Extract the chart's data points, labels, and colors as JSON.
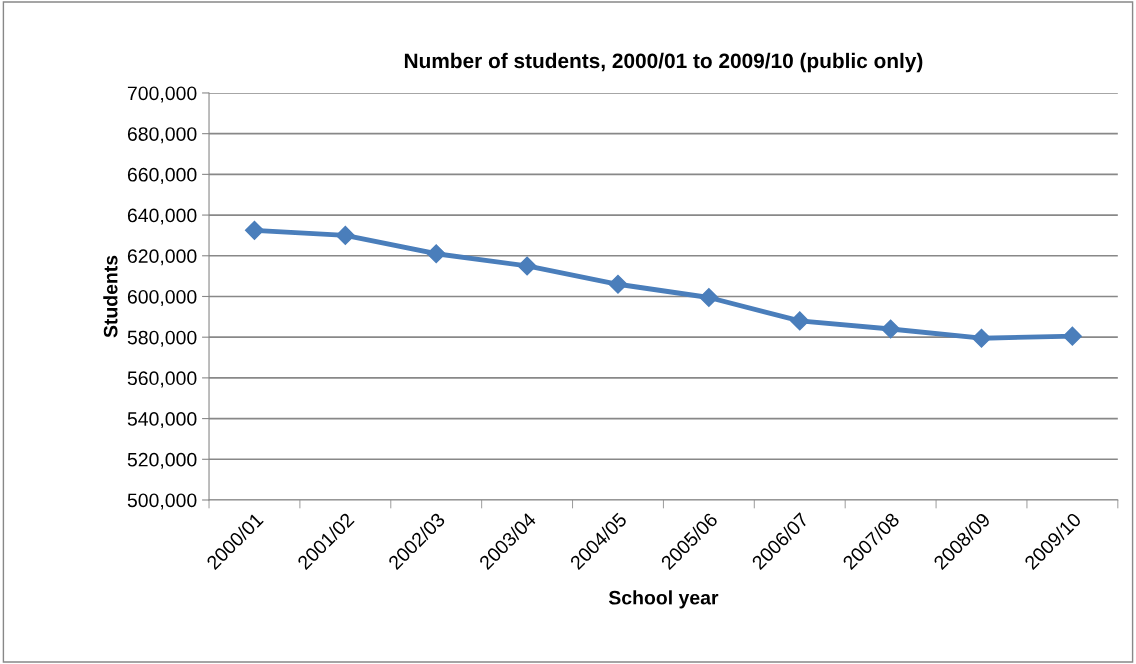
{
  "chart_data": {
    "type": "line",
    "title": "Number of students, 2000/01 to 2009/10 (public only)",
    "xlabel": "School year",
    "ylabel": "Students",
    "categories": [
      "2000/01",
      "2001/02",
      "2002/03",
      "2003/04",
      "2004/05",
      "2005/06",
      "2006/07",
      "2007/08",
      "2008/09",
      "2009/10"
    ],
    "series": [
      {
        "color": "#4a7ebb",
        "values": [
          632500,
          630000,
          621000,
          615000,
          606000,
          599500,
          588000,
          584000,
          579500,
          580500
        ]
      }
    ],
    "ylim": [
      500000,
      700000
    ],
    "yticks": [
      {
        "value": 500000,
        "label": "500,000"
      },
      {
        "value": 520000,
        "label": "520,000"
      },
      {
        "value": 540000,
        "label": "540,000"
      },
      {
        "value": 560000,
        "label": "560,000"
      },
      {
        "value": 580000,
        "label": "580,000"
      },
      {
        "value": 600000,
        "label": "600,000"
      },
      {
        "value": 620000,
        "label": "620,000"
      },
      {
        "value": 640000,
        "label": "640,000"
      },
      {
        "value": 660000,
        "label": "660,000"
      },
      {
        "value": 680000,
        "label": "680,000"
      },
      {
        "value": 700000,
        "label": "700,000"
      }
    ],
    "grid": "y",
    "marker": "diamond",
    "line_style": "solid"
  }
}
